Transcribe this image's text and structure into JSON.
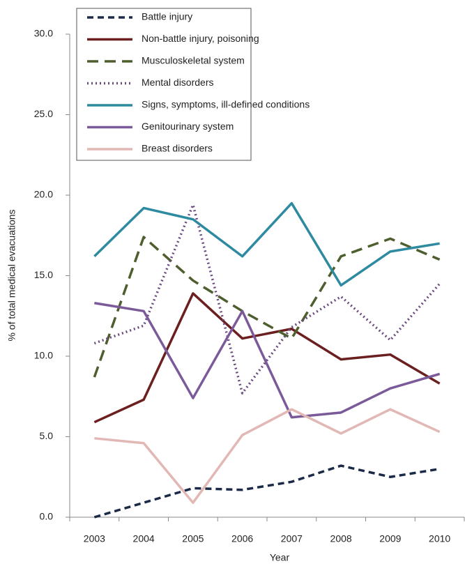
{
  "chart_data": {
    "type": "line",
    "x_label": "Year",
    "y_label": "% of total medical evacuations",
    "categories": [
      "2003",
      "2004",
      "2005",
      "2006",
      "2007",
      "2008",
      "2009",
      "2010"
    ],
    "ylim": [
      0,
      30
    ],
    "yticks": [
      {
        "value": 0,
        "label": "0.0"
      },
      {
        "value": 5,
        "label": "5.0"
      },
      {
        "value": 10,
        "label": "10.0"
      },
      {
        "value": 15,
        "label": "15.0"
      },
      {
        "value": 20,
        "label": "20.0"
      },
      {
        "value": 25,
        "label": "25.0"
      },
      {
        "value": 30,
        "label": "30.0"
      }
    ],
    "legend": "top-left",
    "series": [
      {
        "name": "Battle injury",
        "color": "#1b2a47",
        "dash": "dashed",
        "values": [
          0.0,
          0.9,
          1.8,
          1.7,
          2.2,
          3.2,
          2.5,
          3.0
        ]
      },
      {
        "name": "Non-battle injury, poisoning",
        "color": "#6b1f1f",
        "dash": "solid",
        "values": [
          5.9,
          7.3,
          13.9,
          11.1,
          11.7,
          9.8,
          10.1,
          8.3
        ]
      },
      {
        "name": "Musculoskeletal system",
        "color": "#4e5e2e",
        "dash": "longdash",
        "values": [
          8.7,
          17.4,
          14.7,
          12.8,
          11.1,
          16.2,
          17.3,
          16.0
        ]
      },
      {
        "name": "Mental disorders",
        "color": "#6b4a80",
        "dash": "dotted",
        "values": [
          10.8,
          11.9,
          19.4,
          7.7,
          11.8,
          13.7,
          11.0,
          14.5
        ]
      },
      {
        "name": "Signs, symptoms, ill-defined conditions",
        "color": "#2e8aa0",
        "dash": "solid",
        "values": [
          16.2,
          19.2,
          18.5,
          16.2,
          19.5,
          14.4,
          16.5,
          17.0
        ]
      },
      {
        "name": "Genitourinary system",
        "color": "#7b5a9a",
        "dash": "solid",
        "values": [
          13.3,
          12.8,
          7.4,
          12.8,
          6.2,
          6.5,
          8.0,
          8.9
        ]
      },
      {
        "name": "Breast disorders",
        "color": "#e2b8b5",
        "dash": "solid",
        "values": [
          4.9,
          4.6,
          0.9,
          5.1,
          6.7,
          5.2,
          6.7,
          5.3
        ]
      }
    ]
  }
}
